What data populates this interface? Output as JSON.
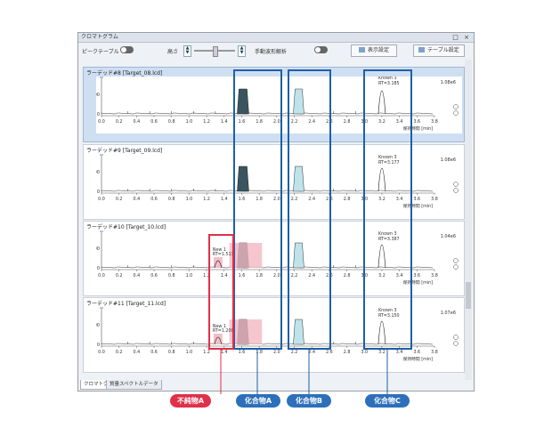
{
  "window": {
    "title": "クロマトグラム",
    "controls": "□ ×"
  },
  "toolbar": {
    "peak_table_label": "ピークテーブル",
    "height_label": "高さ",
    "manual_label": "手動波形解析",
    "display_settings_label": "表示設定",
    "table_settings_label": "テーブル設定"
  },
  "x_axis": {
    "ticks": [
      "0.0",
      "0.2",
      "0.4",
      "0.6",
      "0.8",
      "1.0",
      "1.2",
      "1.4",
      "1.6",
      "1.8",
      "2.0",
      "2.2",
      "2.4",
      "2.6",
      "2.8",
      "3.0",
      "3.2",
      "3.4",
      "3.6",
      "3.8"
    ],
    "label": "保持時間",
    "unit": "[min]"
  },
  "panes": [
    {
      "title": "ラーデッド#8 [Target_08.lcd]",
      "scale": "1.08e6",
      "ytick": "2500",
      "ytick0": "0",
      "known": "Known 3",
      "known_rt": "RT=3.185",
      "new": "",
      "new_rt": ""
    },
    {
      "title": "ラーデッド#9 [Target_09.lcd]",
      "scale": "1.08e6",
      "ytick": "2500",
      "ytick0": "0",
      "known": "Known 3",
      "known_rt": "RT=3.177",
      "new": "",
      "new_rt": ""
    },
    {
      "title": "ラーデッド#10 [Target_10.lcd]",
      "scale": "1.04e6",
      "ytick": "2500",
      "ytick0": "0",
      "known": "Known 3",
      "known_rt": "RT=3.387",
      "new": "New 1",
      "new_rt": "RT=1.511"
    },
    {
      "title": "ラーデッド#11 [Target_11.lcd]",
      "scale": "1.07e6",
      "ytick": "2500",
      "ytick0": "0",
      "known": "Known 3",
      "known_rt": "RT=3.150",
      "new": "New 1",
      "new_rt": "RT=1.200"
    }
  ],
  "tabs": [
    "クロマトグラム",
    "質量スペクトルデータ"
  ],
  "callouts": {
    "impurity_a": "不純物A",
    "compound_a": "化合物A",
    "compound_b": "化合物B",
    "compound_c": "化合物C"
  },
  "colors": {
    "blue_box": "#1f5fa8",
    "red_box": "#e0304a",
    "impurity_badge": "#e0304a",
    "compound_badge": "#2d6fba",
    "peak_a": "#3a5560",
    "peak_b": "#bfe3ea",
    "peak_red_fill": "#f2b8c2"
  }
}
